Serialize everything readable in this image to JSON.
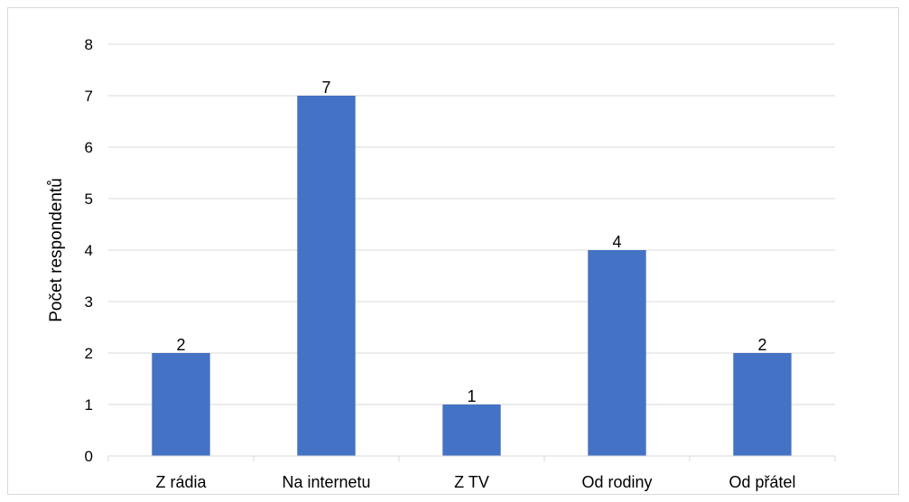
{
  "chart_data": {
    "type": "bar",
    "categories": [
      "Z rádia",
      "Na internetu",
      "Z TV",
      "Od rodiny",
      "Od přátel"
    ],
    "values": [
      2,
      7,
      1,
      4,
      2
    ],
    "title": "",
    "xlabel": "",
    "ylabel": "Počet respondentů",
    "ylim": [
      0,
      8
    ],
    "yticks": [
      0,
      1,
      2,
      3,
      4,
      5,
      6,
      7,
      8
    ],
    "grid": true,
    "legend": "none",
    "bar_color": "#4472C4",
    "grid_color": "#d9d9d9"
  }
}
